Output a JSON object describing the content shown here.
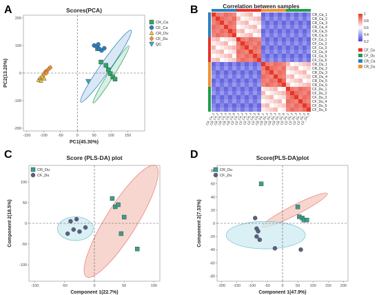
{
  "chart_data": [
    {
      "panel": "A",
      "type": "scatter",
      "title": "Scores(PCA)",
      "xlabel": "PC1(45.30%)",
      "ylabel": "PC2(13.20%)",
      "xlim": [
        -160,
        200
      ],
      "ylim": [
        -210,
        210
      ],
      "xticks": [
        "-150",
        "-100",
        "-50",
        "0",
        "50",
        "100",
        "150"
      ],
      "yticks": [
        "200",
        "100",
        "0",
        "-100",
        "-200"
      ],
      "legend_position": "top-right",
      "series": [
        {
          "name": "CR_Ca",
          "marker": "square",
          "color": "#2ba76a",
          "points": [
            [
              60,
              88
            ],
            [
              70,
              40
            ],
            [
              85,
              28
            ],
            [
              92,
              12
            ],
            [
              98,
              -2
            ],
            [
              105,
              -14
            ],
            [
              112,
              -22
            ]
          ]
        },
        {
          "name": "CF_Ca",
          "marker": "circle",
          "color": "#2d7fc1",
          "points": [
            [
              50,
              100
            ],
            [
              58,
              95
            ],
            [
              65,
              88
            ],
            [
              72,
              82
            ],
            [
              80,
              90
            ],
            [
              62,
              104
            ]
          ]
        },
        {
          "name": "CR_Du",
          "marker": "triangle",
          "color": "#e8c233",
          "points": [
            [
              -115,
              -25
            ],
            [
              -110,
              -18
            ],
            [
              -104,
              -12
            ],
            [
              -108,
              -28
            ],
            [
              -98,
              -20
            ]
          ]
        },
        {
          "name": "CF_Du",
          "marker": "diamond",
          "color": "#f0922d",
          "points": [
            [
              -100,
              -5
            ],
            [
              -95,
              5
            ],
            [
              -90,
              8
            ],
            [
              -85,
              15
            ],
            [
              -80,
              20
            ],
            [
              -92,
              0
            ]
          ]
        },
        {
          "name": "QC",
          "marker": "tri-down",
          "color": "#3aa7c8",
          "points": [
            [
              32,
              -30
            ]
          ]
        }
      ],
      "ellipses": [
        {
          "color": "#2d7fc1",
          "cx": 85,
          "cy": 25,
          "rx": 130,
          "ry": 15,
          "angle": -55
        },
        {
          "color": "#2ba76a",
          "cx": 100,
          "cy": -5,
          "rx": 100,
          "ry": 9,
          "angle": -58
        }
      ]
    },
    {
      "panel": "B",
      "type": "heatmap",
      "title": "Correlation between samples",
      "labels": [
        "CR_Ca_1",
        "CR_Ca_2",
        "CR_Ca_3",
        "CR_Ca_4",
        "CR_Ca_5",
        "CR_Ca_6",
        "CF_Ca_1",
        "CF_Ca_2",
        "CF_Ca_3",
        "CF_Ca_4",
        "CF_Ca_5",
        "CF_Ca_6",
        "CR_Du_1",
        "CR_Du_2",
        "CR_Du_3",
        "CR_Du_4",
        "CR_Du_5",
        "CR_Du_6",
        "CF_Du_1",
        "CF_Du_2",
        "CF_Du_3",
        "CF_Du_4",
        "CF_Du_5",
        "CF_Du_6"
      ],
      "colorbar": {
        "ticks": [
          "1",
          "0.8",
          "0.6",
          "0.4",
          "0.2"
        ],
        "range": [
          0.1,
          1
        ]
      },
      "row_groups": [
        {
          "name": "CR_Ca",
          "color": "#2b7fc1"
        },
        {
          "name": "CF_Ca",
          "color": "#e8312b"
        },
        {
          "name": "CR_Du",
          "color": "#f0922d"
        },
        {
          "name": "CF_Du",
          "color": "#229b48"
        }
      ],
      "legend": [
        {
          "name": "CF_Ca",
          "color": "#e8312b"
        },
        {
          "name": "CF_Du",
          "color": "#229b48"
        },
        {
          "name": "CR_Ca",
          "color": "#2b7fc1"
        },
        {
          "name": "CR_Du",
          "color": "#f0922d"
        }
      ],
      "within_group": 0.88,
      "cross_group": 0.18
    },
    {
      "panel": "C",
      "type": "scatter",
      "title": "Score (PLS-DA) plot",
      "xlabel": "Component 1(22.7%)",
      "ylabel": "Component 2(18.5%)",
      "xlim": [
        -110,
        110
      ],
      "ylim": [
        -140,
        140
      ],
      "xticks": [
        "-100",
        "-50",
        "0",
        "50",
        "100"
      ],
      "yticks": [
        "100",
        "50",
        "0",
        "-50",
        "-100"
      ],
      "legend_position": "top-left",
      "series": [
        {
          "name": "CR_Du",
          "marker": "square",
          "color": "#3a9f8b",
          "points": [
            [
              30,
              60
            ],
            [
              35,
              40
            ],
            [
              40,
              45
            ],
            [
              50,
              15
            ],
            [
              45,
              -25
            ],
            [
              72,
              -62
            ]
          ]
        },
        {
          "name": "CF_Du",
          "marker": "circle",
          "color": "#5a6280",
          "points": [
            [
              -45,
              -25
            ],
            [
              -40,
              5
            ],
            [
              -35,
              -15
            ],
            [
              -30,
              10
            ],
            [
              -25,
              -20
            ],
            [
              -15,
              -10
            ]
          ]
        }
      ],
      "ellipses": [
        {
          "color": "#e8847a",
          "fill": "#f6c8c0",
          "cx": 45,
          "cy": 5,
          "rx": 110,
          "ry": 26,
          "angle": -58
        },
        {
          "color": "#7cc7d6",
          "fill": "#cdebf2",
          "cx": -32,
          "cy": -13,
          "rx": 30,
          "ry": 20,
          "angle": 0
        }
      ]
    },
    {
      "panel": "D",
      "type": "scatter",
      "title": "Score(PLS-DA)plot",
      "xlabel": "Component 1(47.9%)",
      "ylabel": "Component 2(7.33%)",
      "xlim": [
        -215,
        215
      ],
      "ylim": [
        -88,
        88
      ],
      "xticks": [
        "-200",
        "-150",
        "-100",
        "-50",
        "0",
        "50",
        "100",
        "150",
        "200"
      ],
      "yticks": [
        "80",
        "60",
        "40",
        "20",
        "0",
        "-20",
        "-40",
        "-60",
        "-80"
      ],
      "legend_position": "top-left",
      "series": [
        {
          "name": "CR_Du",
          "marker": "square",
          "color": "#3a9f8b",
          "points": [
            [
              -70,
              60
            ],
            [
              50,
              25
            ],
            [
              55,
              10
            ],
            [
              65,
              8
            ],
            [
              70,
              5
            ],
            [
              80,
              5
            ]
          ]
        },
        {
          "name": "CF_Du",
          "marker": "circle",
          "color": "#5a6280",
          "points": [
            [
              -90,
              8
            ],
            [
              -85,
              -8
            ],
            [
              -80,
              -12
            ],
            [
              -85,
              -20
            ],
            [
              -75,
              -25
            ],
            [
              -25,
              -38
            ],
            [
              60,
              -40
            ]
          ]
        }
      ],
      "ellipses": [
        {
          "color": "#e8847a",
          "fill": "#f6c8c0",
          "cx": 40,
          "cy": 20,
          "rx": 120,
          "ry": 16,
          "angle": -27
        },
        {
          "color": "#7cc7d6",
          "fill": "#cdebf2",
          "cx": -55,
          "cy": -18,
          "rx": 130,
          "ry": 45,
          "angle": 0
        }
      ]
    }
  ],
  "panel_letters": {
    "a": "A",
    "b": "B",
    "c": "C",
    "d": "D"
  }
}
